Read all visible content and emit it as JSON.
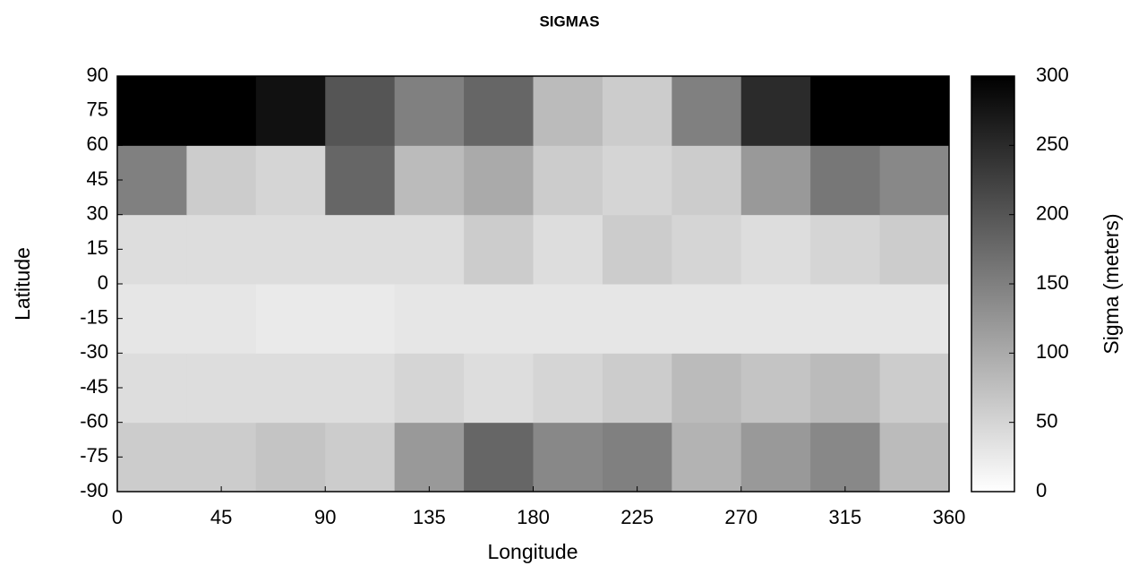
{
  "chart_data": {
    "type": "heatmap",
    "title": "SIGMAS",
    "x_label": "Longitude",
    "y_label": "Latitude",
    "colorbar_label": "Sigma (meters)",
    "xbins": [
      0,
      30,
      60,
      90,
      120,
      150,
      180,
      210,
      240,
      270,
      300,
      330,
      360
    ],
    "ybins": [
      -90,
      -60,
      -30,
      0,
      30,
      60,
      90
    ],
    "z": [
      [
        60,
        60,
        70,
        60,
        120,
        180,
        140,
        150,
        90,
        120,
        140,
        80
      ],
      [
        40,
        40,
        40,
        40,
        50,
        40,
        50,
        60,
        80,
        70,
        80,
        60
      ],
      [
        30,
        30,
        25,
        25,
        30,
        30,
        30,
        30,
        30,
        30,
        30,
        30
      ],
      [
        40,
        40,
        40,
        40,
        40,
        60,
        40,
        60,
        50,
        40,
        50,
        60
      ],
      [
        150,
        60,
        50,
        180,
        80,
        100,
        60,
        50,
        60,
        120,
        160,
        140
      ],
      [
        300,
        300,
        280,
        200,
        150,
        180,
        80,
        60,
        150,
        250,
        300,
        300
      ]
    ],
    "xlim": [
      0,
      360
    ],
    "xticks": [
      0,
      45,
      90,
      135,
      180,
      225,
      270,
      315,
      360
    ],
    "ylim": [
      -90,
      90
    ],
    "yticks": [
      -90,
      -75,
      -60,
      -45,
      -30,
      -15,
      0,
      15,
      30,
      45,
      60,
      75,
      90
    ],
    "zlim": [
      0,
      300
    ],
    "zticks": [
      0,
      50,
      100,
      150,
      200,
      250,
      300
    ],
    "colormap": [
      "#ffffff",
      "#000000"
    ]
  }
}
